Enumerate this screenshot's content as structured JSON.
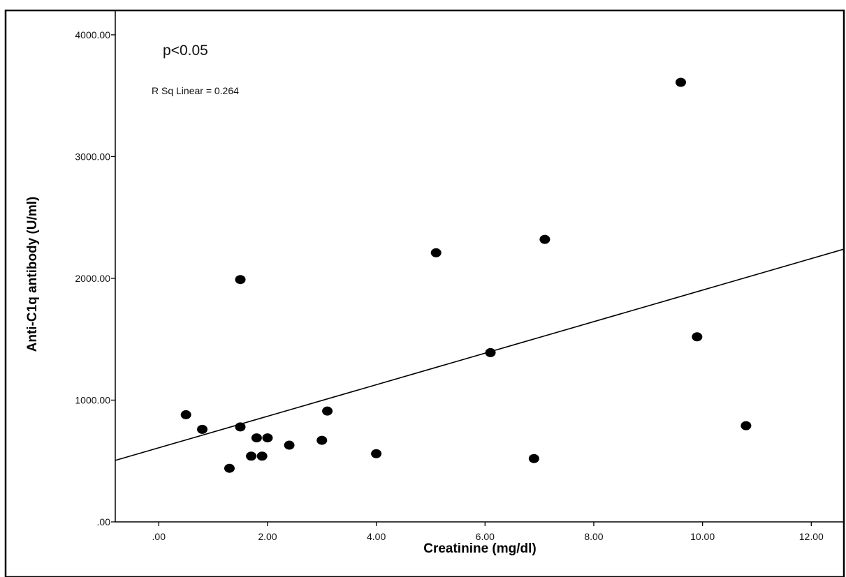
{
  "chart_data": {
    "type": "scatter",
    "title": "",
    "xlabel": "Creatinine (mg/dl)",
    "ylabel": "Anti-C1q antibody (U/ml)",
    "xlim": [
      -0.8,
      12.6
    ],
    "ylim": [
      0,
      4200
    ],
    "x_ticks": [
      0,
      2,
      4,
      6,
      8,
      10,
      12
    ],
    "x_tick_labels": [
      ".00",
      "2.00",
      "4.00",
      "6.00",
      "8.00",
      "10.00",
      "12.00"
    ],
    "y_ticks": [
      0,
      1000,
      2000,
      3000,
      4000
    ],
    "y_tick_labels": [
      ".00",
      "1000.00",
      "2000.00",
      "3000.00",
      "4000.00"
    ],
    "grid": false,
    "points": [
      {
        "x": 0.5,
        "y": 880
      },
      {
        "x": 0.8,
        "y": 760
      },
      {
        "x": 1.3,
        "y": 440
      },
      {
        "x": 1.5,
        "y": 780
      },
      {
        "x": 1.5,
        "y": 1990
      },
      {
        "x": 1.7,
        "y": 540
      },
      {
        "x": 1.8,
        "y": 690
      },
      {
        "x": 1.9,
        "y": 540
      },
      {
        "x": 2.0,
        "y": 690
      },
      {
        "x": 2.4,
        "y": 630
      },
      {
        "x": 3.0,
        "y": 670
      },
      {
        "x": 3.1,
        "y": 910
      },
      {
        "x": 4.0,
        "y": 560
      },
      {
        "x": 5.1,
        "y": 2210
      },
      {
        "x": 6.1,
        "y": 1390
      },
      {
        "x": 6.9,
        "y": 520
      },
      {
        "x": 7.1,
        "y": 2320
      },
      {
        "x": 9.6,
        "y": 3610
      },
      {
        "x": 9.9,
        "y": 1520
      },
      {
        "x": 10.8,
        "y": 790
      }
    ],
    "fit_line": {
      "type": "linear",
      "x": [
        -0.8,
        12.6
      ],
      "y": [
        505,
        2240
      ]
    },
    "annotations": {
      "p_value": "p<0.05",
      "r_squared": "R Sq Linear = 0.264"
    },
    "marker_color": "#000000",
    "line_color": "#000000"
  }
}
